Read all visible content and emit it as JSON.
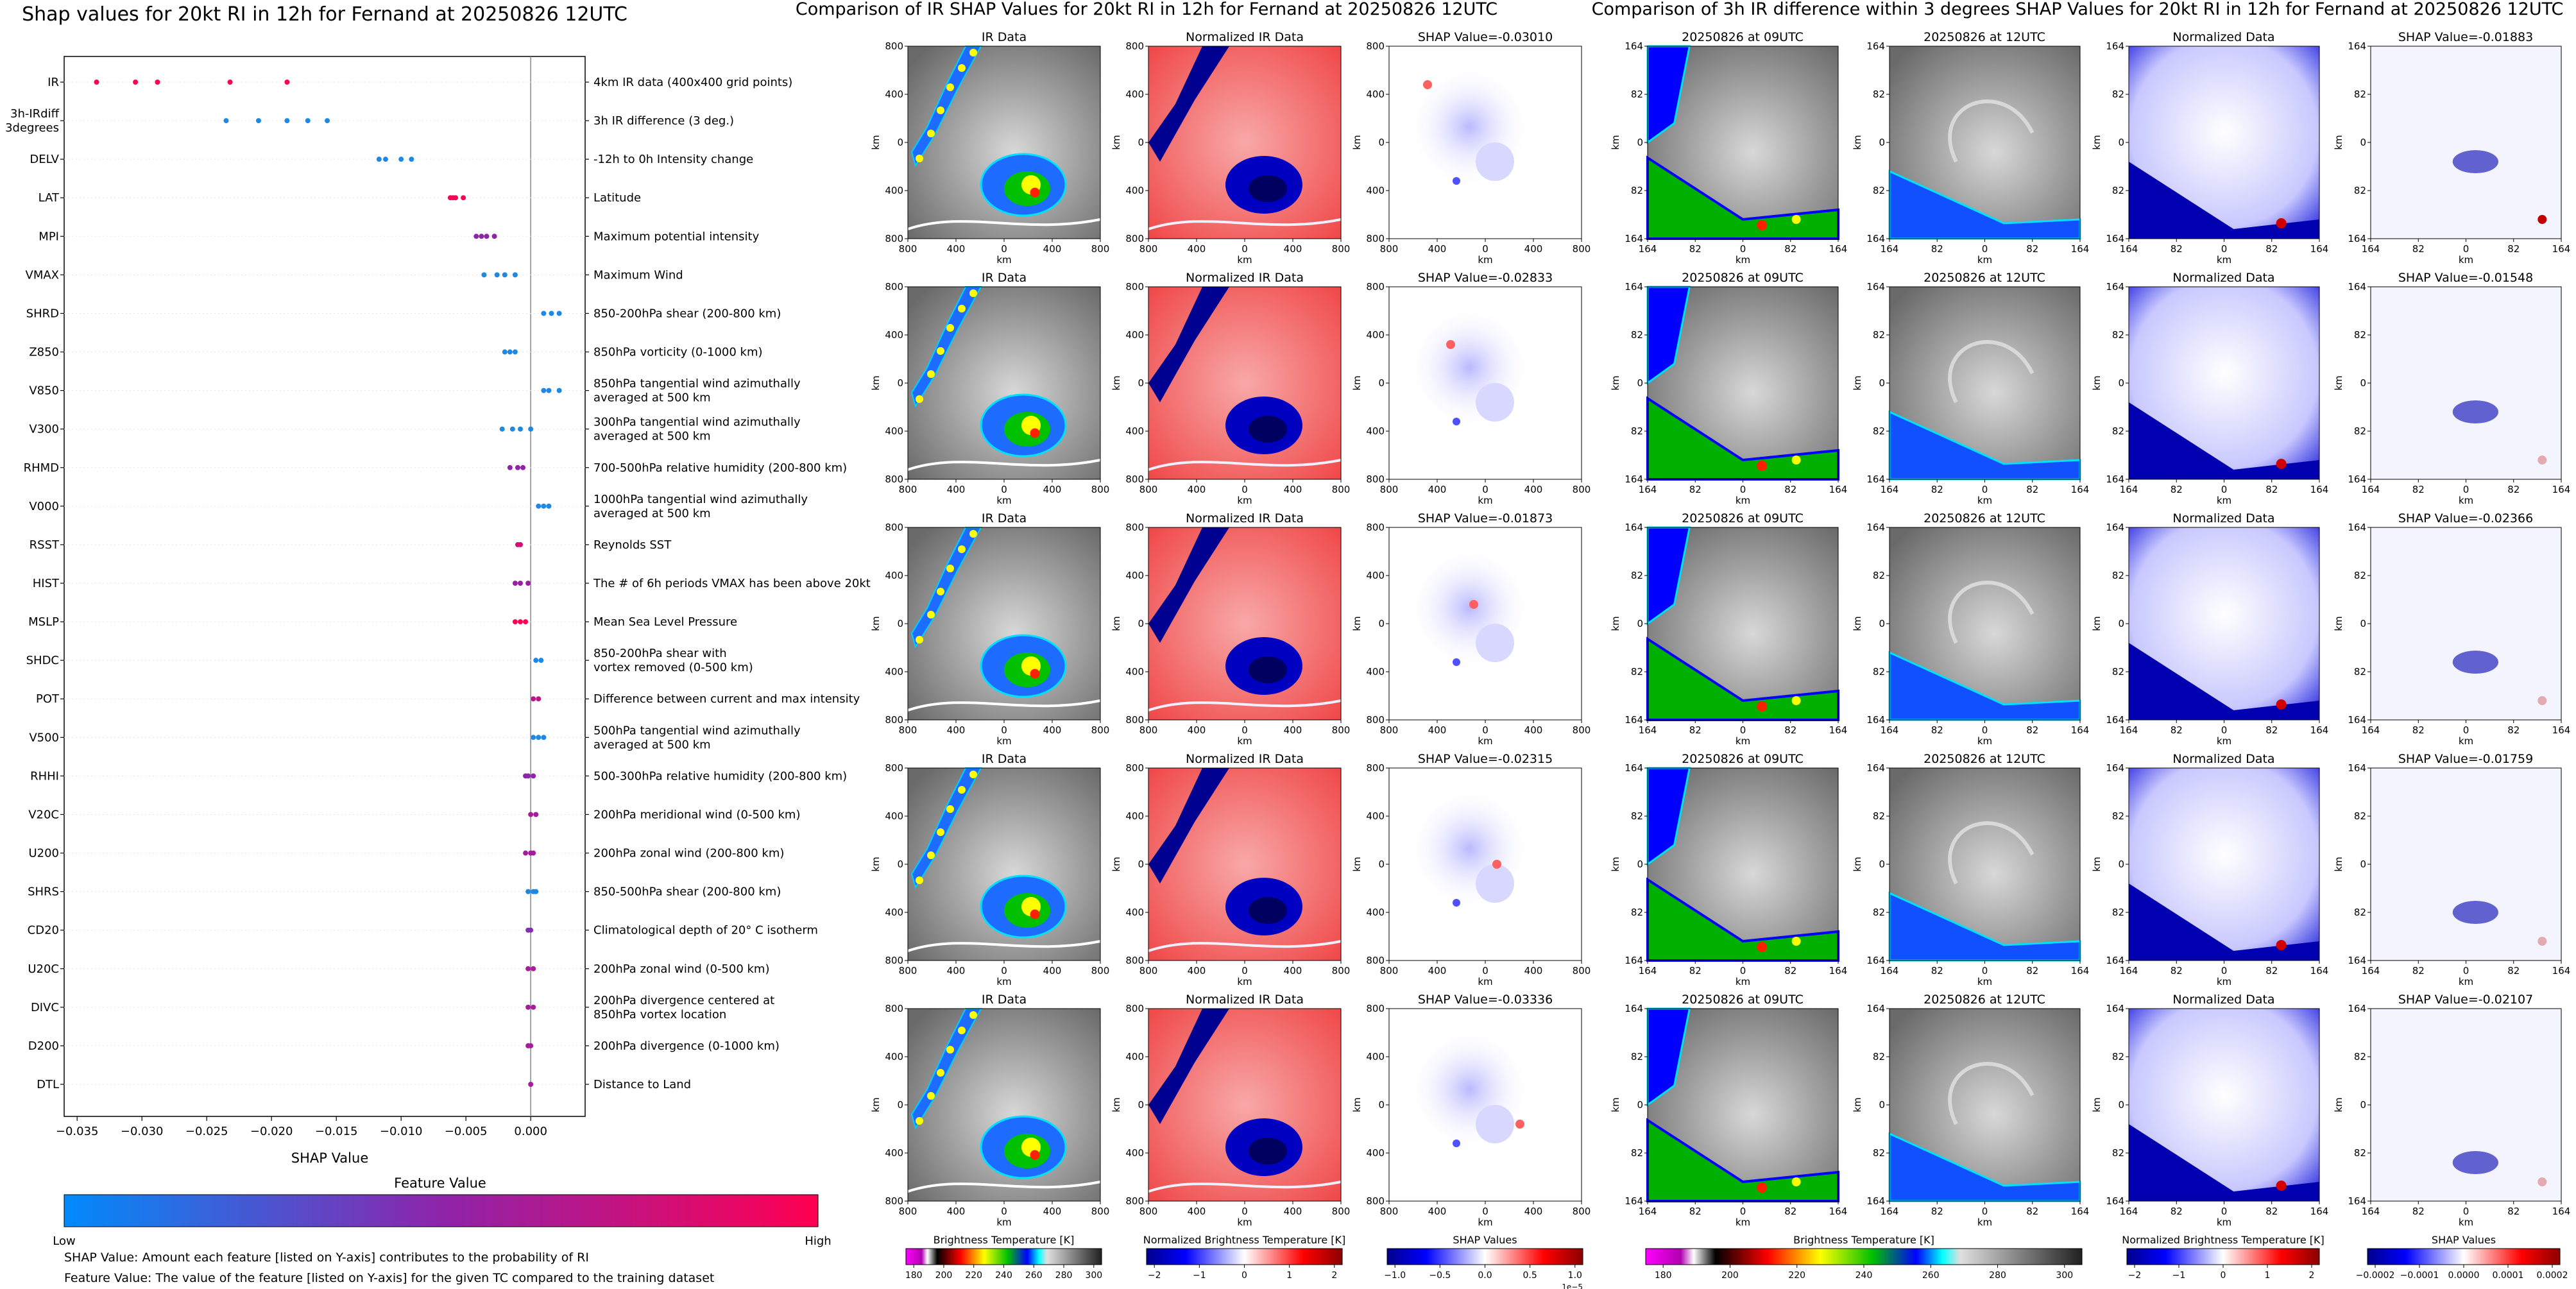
{
  "left_panel": {
    "title": "Shap values for 20kt RI in 12h for Fernand at 20250826 12UTC",
    "xlabel": "SHAP Value",
    "colorbar_title": "Feature Value",
    "colorbar_low": "Low",
    "colorbar_high": "High",
    "footnote1": "SHAP Value: Amount each feature [listed on Y-axis] contributes to the probability of RI",
    "footnote2": "Feature Value: The value of the feature [listed on Y-axis] for the given TC compared to the training dataset",
    "colors": {
      "low": "#1e88e5",
      "mid": "#8e24aa",
      "high": "#ff0052"
    }
  },
  "chart_data": {
    "type": "scatter",
    "title": "Shap values for 20kt RI in 12h for Fernand at 20250826 12UTC",
    "xlabel": "SHAP Value",
    "xlim": [
      -0.036,
      0.0042
    ],
    "xticks": [
      -0.035,
      -0.03,
      -0.025,
      -0.02,
      -0.015,
      -0.01,
      -0.005,
      0.0
    ],
    "xtick_labels": [
      "−0.035",
      "−0.030",
      "−0.025",
      "−0.020",
      "−0.015",
      "−0.010",
      "−0.005",
      "0.000"
    ],
    "features": [
      {
        "code": "IR",
        "desc": "4km IR data (400x400 grid points)",
        "shap": [
          -0.0335,
          -0.0305,
          -0.0288,
          -0.0232,
          -0.0188
        ],
        "feature_value": [
          1,
          1,
          1,
          1,
          1
        ]
      },
      {
        "code": "3h-IRdiff\n3degrees",
        "desc": "3h IR difference (3 deg.)",
        "shap": [
          -0.0235,
          -0.021,
          -0.0188,
          -0.0172,
          -0.0157
        ],
        "feature_value": [
          0,
          0,
          0,
          0,
          0
        ]
      },
      {
        "code": "DELV",
        "desc": "-12h to 0h Intensity change",
        "shap": [
          -0.0117,
          -0.0112,
          -0.01,
          -0.0092
        ],
        "feature_value": [
          0,
          0,
          0,
          0
        ]
      },
      {
        "code": "LAT",
        "desc": "Latitude",
        "shap": [
          -0.0062,
          -0.006,
          -0.0058,
          -0.0052
        ],
        "feature_value": [
          1,
          1,
          1,
          1
        ]
      },
      {
        "code": "MPI",
        "desc": "Maximum potential intensity",
        "shap": [
          -0.0042,
          -0.0038,
          -0.0034,
          -0.0028
        ],
        "feature_value": [
          0.5,
          0.5,
          0.5,
          0.5
        ]
      },
      {
        "code": "VMAX",
        "desc": "Maximum Wind",
        "shap": [
          -0.0036,
          -0.0026,
          -0.002,
          -0.0012
        ],
        "feature_value": [
          0,
          0,
          0,
          0
        ]
      },
      {
        "code": "SHRD",
        "desc": "850-200hPa shear (200-800 km)",
        "shap": [
          0.001,
          0.0016,
          0.0022
        ],
        "feature_value": [
          0,
          0,
          0
        ]
      },
      {
        "code": "Z850",
        "desc": "850hPa vorticity (0-1000 km)",
        "shap": [
          -0.002,
          -0.0016,
          -0.0012
        ],
        "feature_value": [
          0,
          0,
          0
        ]
      },
      {
        "code": "V850",
        "desc": "850hPa tangential wind azimuthally\naveraged at 500 km",
        "shap": [
          0.001,
          0.0014,
          0.0022
        ],
        "feature_value": [
          0,
          0,
          0
        ]
      },
      {
        "code": "V300",
        "desc": "300hPa tangential wind azimuthally\naveraged at 500 km",
        "shap": [
          -0.0022,
          -0.0014,
          -0.0008,
          0.0
        ],
        "feature_value": [
          0,
          0,
          0,
          0
        ]
      },
      {
        "code": "RHMD",
        "desc": "700-500hPa relative humidity (200-800 km)",
        "shap": [
          -0.0016,
          -0.001,
          -0.0006
        ],
        "feature_value": [
          0.5,
          0.5,
          0.5
        ]
      },
      {
        "code": "V000",
        "desc": "1000hPa tangential wind azimuthally\naveraged at 500 km",
        "shap": [
          0.0006,
          0.001,
          0.0014
        ],
        "feature_value": [
          0,
          0,
          0
        ]
      },
      {
        "code": "RSST",
        "desc": "Reynolds SST",
        "shap": [
          -0.001,
          -0.0008
        ],
        "feature_value": [
          0.8,
          0.8
        ]
      },
      {
        "code": "HIST",
        "desc": "The # of 6h periods VMAX has been above 20kt",
        "shap": [
          -0.0012,
          -0.0008,
          -0.0002
        ],
        "feature_value": [
          0.55,
          0.55,
          0.55
        ]
      },
      {
        "code": "MSLP",
        "desc": "Mean Sea Level Pressure",
        "shap": [
          -0.0012,
          -0.0008,
          -0.0004
        ],
        "feature_value": [
          1,
          1,
          1
        ]
      },
      {
        "code": "SHDC",
        "desc": "850-200hPa shear with\nvortex removed (0-500 km)",
        "shap": [
          0.0004,
          0.0008
        ],
        "feature_value": [
          0,
          0
        ]
      },
      {
        "code": "POT",
        "desc": "Difference between current and max intensity",
        "shap": [
          0.0002,
          0.0006
        ],
        "feature_value": [
          0.7,
          0.7
        ]
      },
      {
        "code": "V500",
        "desc": "500hPa tangential wind azimuthally\naveraged at 500 km",
        "shap": [
          0.0002,
          0.0006,
          0.001
        ],
        "feature_value": [
          0,
          0,
          0
        ]
      },
      {
        "code": "RHHI",
        "desc": "500-300hPa relative humidity (200-800 km)",
        "shap": [
          -0.0004,
          -0.0002,
          0.0002
        ],
        "feature_value": [
          0.5,
          0.5,
          0.5
        ]
      },
      {
        "code": "V20C",
        "desc": "200hPa meridional wind (0-500 km)",
        "shap": [
          0.0,
          0.0004
        ],
        "feature_value": [
          0.6,
          0.6
        ]
      },
      {
        "code": "U200",
        "desc": "200hPa zonal wind (200-800 km)",
        "shap": [
          -0.0004,
          0.0,
          0.0002
        ],
        "feature_value": [
          0.6,
          0.6,
          0.6
        ]
      },
      {
        "code": "SHRS",
        "desc": "850-500hPa shear (200-800 km)",
        "shap": [
          -0.0002,
          0.0002,
          0.0004
        ],
        "feature_value": [
          0,
          0,
          0
        ]
      },
      {
        "code": "CD20",
        "desc": "Climatological depth of 20° C isotherm",
        "shap": [
          -0.0002,
          0.0
        ],
        "feature_value": [
          0.45,
          0.45
        ]
      },
      {
        "code": "U20C",
        "desc": "200hPa zonal wind (0-500 km)",
        "shap": [
          -0.0002,
          0.0002
        ],
        "feature_value": [
          0.6,
          0.6
        ]
      },
      {
        "code": "DIVC",
        "desc": "200hPa divergence centered at\n850hPa vortex location",
        "shap": [
          -0.0002,
          0.0002
        ],
        "feature_value": [
          0.6,
          0.6
        ]
      },
      {
        "code": "D200",
        "desc": "200hPa divergence (0-1000 km)",
        "shap": [
          -0.0002,
          0.0
        ],
        "feature_value": [
          0.6,
          0.6
        ]
      },
      {
        "code": "DTL",
        "desc": "Distance to Land",
        "shap": [
          0.0
        ],
        "feature_value": [
          0.6
        ]
      }
    ]
  },
  "ir_comparison": {
    "title": "Comparison of IR SHAP Values for 20kt RI in 12h for Fernand at 20250826 12UTC",
    "column_titles": [
      "IR Data",
      "Normalized IR Data"
    ],
    "shap_titles": [
      "SHAP Value=-0.03010",
      "SHAP Value=-0.02833",
      "SHAP Value=-0.01873",
      "SHAP Value=-0.02315",
      "SHAP Value=-0.03336"
    ],
    "axis_unit": "km",
    "ticks": [
      "800",
      "400",
      "0",
      "400",
      "800"
    ],
    "colorbars": [
      {
        "label": "Brightness Temperature [K]",
        "ticks": [
          "180",
          "200",
          "220",
          "240",
          "260",
          "280",
          "300"
        ]
      },
      {
        "label": "Normalized Brightness Temperature [K]",
        "ticks": [
          "−2",
          "−1",
          "0",
          "1",
          "2"
        ]
      },
      {
        "label": "SHAP Values",
        "ticks": [
          "−1.0",
          "−0.5",
          "0.0",
          "0.5",
          "1.0"
        ],
        "offset": "1e−5"
      }
    ]
  },
  "diff_comparison": {
    "title": "Comparison of 3h IR difference within 3 degrees SHAP Values for 20kt RI in 12h for Fernand at 20250826 12UTC",
    "column_titles": [
      "20250826 at 09UTC",
      "20250826 at 12UTC",
      "Normalized Data"
    ],
    "shap_titles": [
      "SHAP Value=-0.01883",
      "SHAP Value=-0.01548",
      "SHAP Value=-0.02366",
      "SHAP Value=-0.01759",
      "SHAP Value=-0.02107"
    ],
    "axis_unit": "km",
    "ticks": [
      "164",
      "82",
      "0",
      "82",
      "164"
    ],
    "colorbars": [
      {
        "label": "Brightness Temperature [K]",
        "ticks": [
          "180",
          "200",
          "220",
          "240",
          "260",
          "280",
          "300"
        ]
      },
      {
        "label": "Normalized Brightness Temperature [K]",
        "ticks": [
          "−2",
          "−1",
          "0",
          "1",
          "2"
        ]
      },
      {
        "label": "SHAP Values",
        "ticks": [
          "−0.0002",
          "−0.0001",
          "0.0000",
          "0.0001",
          "0.0002"
        ]
      }
    ]
  }
}
